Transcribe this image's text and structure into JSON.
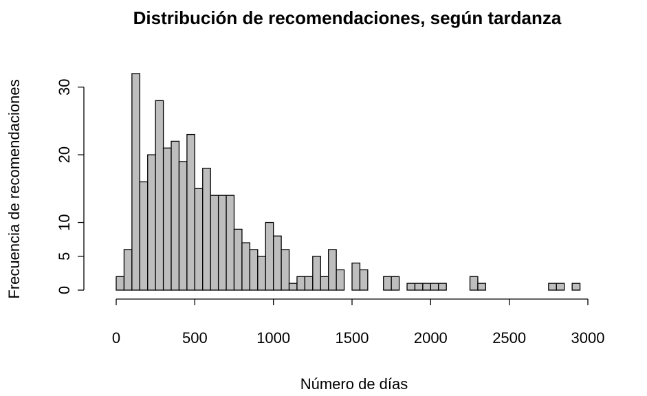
{
  "chart_data": {
    "type": "histogram",
    "title": "Distribución de recomendaciones, según tardanza",
    "x_label": "Número de días",
    "y_label": "Frecuencia de recomendaciones",
    "color": "#bebebe",
    "bins": [
      0,
      50,
      100,
      150,
      200,
      250,
      300,
      350,
      400,
      450,
      500,
      550,
      600,
      650,
      700,
      750,
      800,
      850,
      900,
      950,
      1000,
      1050,
      1100,
      1150,
      1200,
      1250,
      1300,
      1350,
      1400,
      1450,
      1500,
      1550,
      1600,
      1650,
      1700,
      1750,
      1800,
      1850,
      1900,
      1950,
      2000,
      2050,
      2100,
      2150,
      2200,
      2250,
      2300,
      2350,
      2400,
      2450,
      2500,
      2550,
      2600,
      2650,
      2700,
      2750,
      2800,
      2850,
      2900,
      2950
    ],
    "values": [
      2,
      6,
      32,
      16,
      20,
      28,
      21,
      22,
      19,
      23,
      15,
      18,
      14,
      14,
      14,
      9,
      7,
      6,
      5,
      10,
      8,
      6,
      1,
      2,
      2,
      5,
      2,
      6,
      3,
      0,
      4,
      3,
      0,
      0,
      2,
      2,
      0,
      1,
      1,
      1,
      1,
      1,
      0,
      0,
      0,
      2,
      1,
      0,
      0,
      0,
      0,
      0,
      0,
      0,
      0,
      1,
      1,
      0,
      1
    ],
    "xlim": [
      0,
      3000
    ],
    "xticks": [
      0,
      500,
      1000,
      1500,
      2000,
      2500,
      3000
    ],
    "ylim": [
      0,
      32
    ],
    "yticks": [
      0,
      5,
      10,
      20,
      30
    ]
  }
}
